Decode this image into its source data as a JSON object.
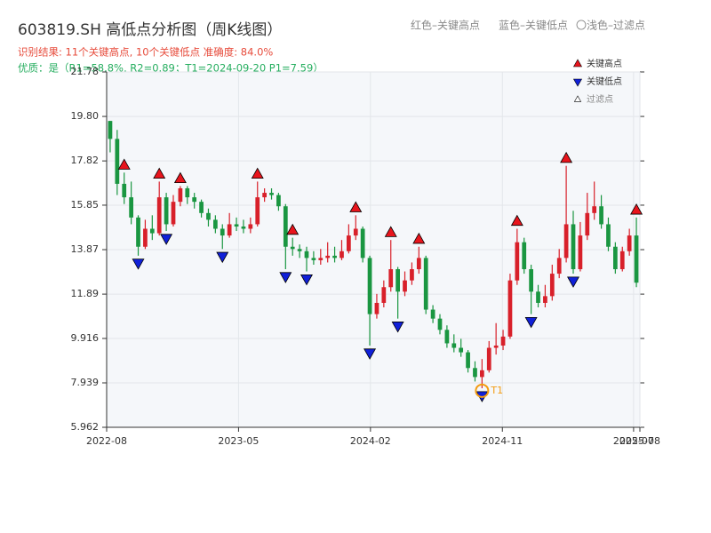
{
  "chart_data": {
    "type": "candlestick",
    "title": "603819.SH 高低点分析图（周K线图）",
    "notes": [
      "红色–关键高点",
      "蓝色–关键低点",
      "〇浅色–过滤点"
    ],
    "result_text": "识别结果: 11个关键高点, 10个关键低点  准确度: 84.0%",
    "quality_text": "优质：是（R1=58.8%, R2=0.89；T1=2024-09-20 P1=7.59）",
    "up_color": "#d8202a",
    "down_color": "#1a9641",
    "open": [
      19.6,
      18.8,
      16.8,
      16.2,
      15.3,
      14.0,
      14.8,
      14.6,
      16.2,
      15.0,
      16.0,
      16.6,
      16.2,
      16.0,
      15.5,
      15.2,
      14.8,
      14.5,
      15.0,
      14.9,
      14.8,
      15.0,
      16.2,
      16.4,
      16.3,
      15.8,
      14.0,
      13.9,
      13.8,
      13.5,
      13.4,
      13.5,
      13.6,
      13.5,
      13.8,
      14.5,
      14.8,
      13.5,
      11.0,
      11.5,
      12.2,
      13.0,
      12.0,
      12.5,
      13.0,
      13.5,
      11.2,
      10.8,
      10.3,
      9.7,
      9.5,
      9.3,
      8.6,
      8.2,
      8.5,
      9.5,
      9.6,
      10.0,
      12.5,
      14.2,
      13.0,
      12.0,
      11.5,
      11.8,
      12.8,
      13.5,
      15.0,
      13.0,
      14.5,
      15.5,
      15.8,
      15.0,
      14.0,
      13.0,
      13.8,
      14.5
    ],
    "high": [
      19.6,
      19.2,
      17.3,
      16.9,
      15.4,
      15.2,
      15.4,
      16.9,
      16.4,
      16.3,
      16.7,
      16.7,
      16.4,
      16.1,
      15.7,
      15.4,
      15.0,
      15.5,
      15.3,
      15.2,
      15.3,
      16.9,
      16.6,
      16.6,
      16.4,
      15.9,
      14.4,
      14.1,
      14.0,
      13.8,
      13.9,
      14.2,
      14.0,
      14.3,
      15.0,
      15.4,
      14.9,
      13.6,
      11.9,
      12.5,
      14.3,
      13.1,
      12.9,
      13.3,
      14.0,
      13.6,
      11.4,
      11.0,
      10.5,
      10.1,
      9.9,
      9.4,
      8.9,
      9.0,
      9.8,
      10.6,
      10.3,
      12.8,
      14.8,
      14.4,
      13.2,
      12.3,
      12.3,
      13.2,
      13.9,
      17.6,
      15.6,
      15.1,
      16.4,
      16.9,
      16.3,
      15.3,
      14.2,
      14.0,
      14.8,
      15.3
    ],
    "low": [
      18.2,
      16.3,
      15.9,
      15.0,
      13.6,
      13.9,
      14.3,
      14.5,
      14.7,
      14.9,
      15.8,
      15.9,
      15.7,
      15.3,
      14.9,
      14.6,
      13.9,
      14.4,
      14.7,
      14.6,
      14.6,
      14.9,
      16.0,
      16.1,
      15.6,
      13.0,
      13.6,
      13.5,
      12.9,
      13.2,
      13.2,
      13.3,
      13.3,
      13.4,
      13.7,
      14.3,
      13.3,
      9.6,
      10.8,
      11.3,
      12.0,
      10.8,
      11.8,
      12.3,
      12.8,
      11.0,
      10.6,
      10.1,
      9.5,
      9.3,
      9.1,
      8.4,
      8.0,
      7.7,
      8.4,
      9.2,
      9.4,
      9.9,
      12.3,
      12.8,
      11.0,
      11.3,
      11.3,
      11.6,
      12.6,
      13.3,
      12.8,
      12.9,
      14.3,
      15.2,
      14.8,
      13.8,
      12.8,
      12.9,
      13.6,
      12.2
    ],
    "close": [
      18.8,
      16.8,
      16.2,
      15.3,
      14.0,
      14.8,
      14.6,
      16.2,
      15.0,
      16.0,
      16.6,
      16.2,
      16.0,
      15.5,
      15.2,
      14.8,
      14.5,
      15.0,
      14.9,
      14.8,
      15.0,
      16.2,
      16.4,
      16.3,
      15.8,
      14.0,
      13.9,
      13.8,
      13.5,
      13.4,
      13.5,
      13.6,
      13.5,
      13.8,
      14.5,
      14.8,
      13.5,
      11.0,
      11.5,
      12.2,
      13.0,
      12.0,
      12.5,
      13.0,
      13.5,
      11.2,
      10.8,
      10.3,
      9.7,
      9.5,
      9.3,
      8.6,
      8.2,
      8.5,
      9.5,
      9.6,
      10.0,
      12.5,
      14.2,
      13.0,
      12.0,
      11.5,
      11.8,
      12.8,
      13.5,
      15.0,
      13.0,
      14.5,
      15.5,
      15.8,
      15.0,
      14.0,
      13.0,
      13.8,
      14.5,
      12.4
    ],
    "high_points": {
      "name": "关键高点",
      "color": "#e8141c",
      "x": [
        2,
        7,
        10,
        21,
        26,
        35,
        40,
        44,
        58,
        65,
        75
      ],
      "values": [
        17.3,
        16.9,
        16.7,
        16.9,
        14.4,
        15.4,
        14.3,
        14.0,
        14.8,
        17.6,
        15.3
      ]
    },
    "low_points": {
      "name": "关键低点",
      "color": "#1020d8",
      "x": [
        4,
        8,
        16,
        25,
        28,
        37,
        41,
        53,
        60,
        66
      ],
      "values": [
        13.6,
        14.7,
        13.9,
        13.0,
        12.9,
        9.6,
        10.8,
        7.7,
        11.0,
        12.8
      ]
    },
    "filtered_name": "过滤点",
    "t1": {
      "label": "T1",
      "x": 53,
      "value": 7.59,
      "color": "#f39c12"
    },
    "xlim": [
      -0.5,
      75.5
    ],
    "xticks": [
      {
        "value": -0.5,
        "label": "2022-08"
      },
      {
        "value": 18.3,
        "label": "2023-05"
      },
      {
        "value": 37.1,
        "label": "2024-02"
      },
      {
        "value": 55.9,
        "label": "2024-11"
      },
      {
        "value": 74.6,
        "label": "2025-07"
      },
      {
        "value": 75.5,
        "label": "2025-08"
      }
    ],
    "ylim": [
      5.962,
      21.78
    ],
    "yticks": [
      5.962,
      7.939,
      9.916,
      11.89,
      13.87,
      15.85,
      17.82,
      {
        "value": 19.8,
        "label": "19.80"
      },
      21.78
    ],
    "grid": true
  }
}
